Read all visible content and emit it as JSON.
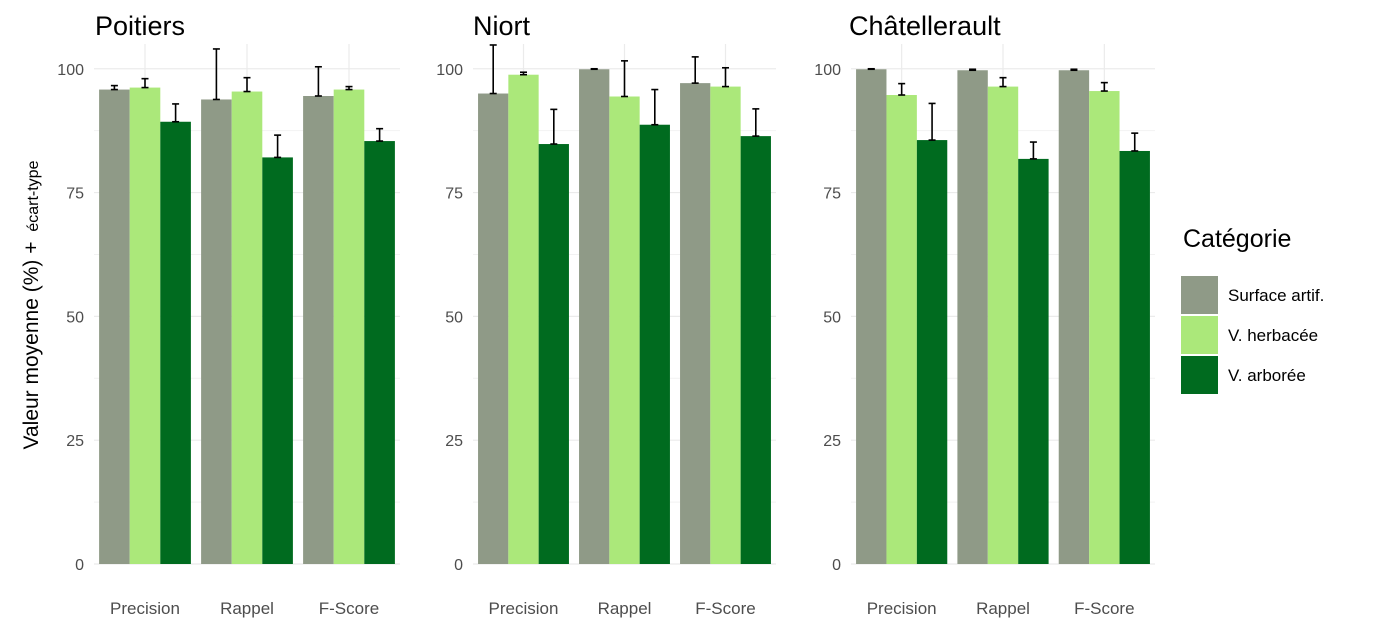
{
  "chart_data": {
    "type": "bar",
    "ylabel_main": "Valeur moyenne (%) +",
    "ylabel_small": "écart-type",
    "ylim": [
      0,
      105
    ],
    "yticks": [
      0,
      25,
      50,
      75,
      100
    ],
    "grid": true,
    "legend": {
      "title": "Catégorie",
      "placement": "right",
      "entries": [
        {
          "name": "Surface artif.",
          "color": "#8f9a87"
        },
        {
          "name": "V. herbacée",
          "color": "#abe87a"
        },
        {
          "name": "V. arborée",
          "color": "#006b1f"
        }
      ]
    },
    "categories": [
      "Precision",
      "Rappel",
      "F-Score"
    ],
    "facets": [
      {
        "title": "Poitiers",
        "series": [
          {
            "name": "Surface artif.",
            "values": [
              95.8,
              93.8,
              94.5
            ],
            "errors": [
              0.8,
              10.2,
              5.9
            ]
          },
          {
            "name": "V. herbacée",
            "values": [
              96.2,
              95.4,
              95.8
            ],
            "errors": [
              1.8,
              2.8,
              0.6
            ]
          },
          {
            "name": "V. arborée",
            "values": [
              89.3,
              82.1,
              85.4
            ],
            "errors": [
              3.6,
              4.5,
              2.5
            ]
          }
        ]
      },
      {
        "title": "Niort",
        "series": [
          {
            "name": "Surface artif.",
            "values": [
              95.0,
              99.9,
              97.1
            ],
            "errors": [
              9.8,
              0.1,
              5.3
            ]
          },
          {
            "name": "V. herbacée",
            "values": [
              98.8,
              94.4,
              96.4
            ],
            "errors": [
              0.5,
              7.2,
              3.8
            ]
          },
          {
            "name": "V. arborée",
            "values": [
              84.8,
              88.7,
              86.4
            ],
            "errors": [
              7.0,
              7.1,
              5.5
            ]
          }
        ]
      },
      {
        "title": "Châtellerault",
        "series": [
          {
            "name": "Surface artif.",
            "values": [
              99.9,
              99.7,
              99.7
            ],
            "errors": [
              0.1,
              0.2,
              0.2
            ]
          },
          {
            "name": "V. herbacée",
            "values": [
              94.7,
              96.4,
              95.5
            ],
            "errors": [
              2.3,
              1.8,
              1.7
            ]
          },
          {
            "name": "V. arborée",
            "values": [
              85.6,
              81.8,
              83.4
            ],
            "errors": [
              7.4,
              3.4,
              3.6
            ]
          }
        ]
      }
    ]
  }
}
